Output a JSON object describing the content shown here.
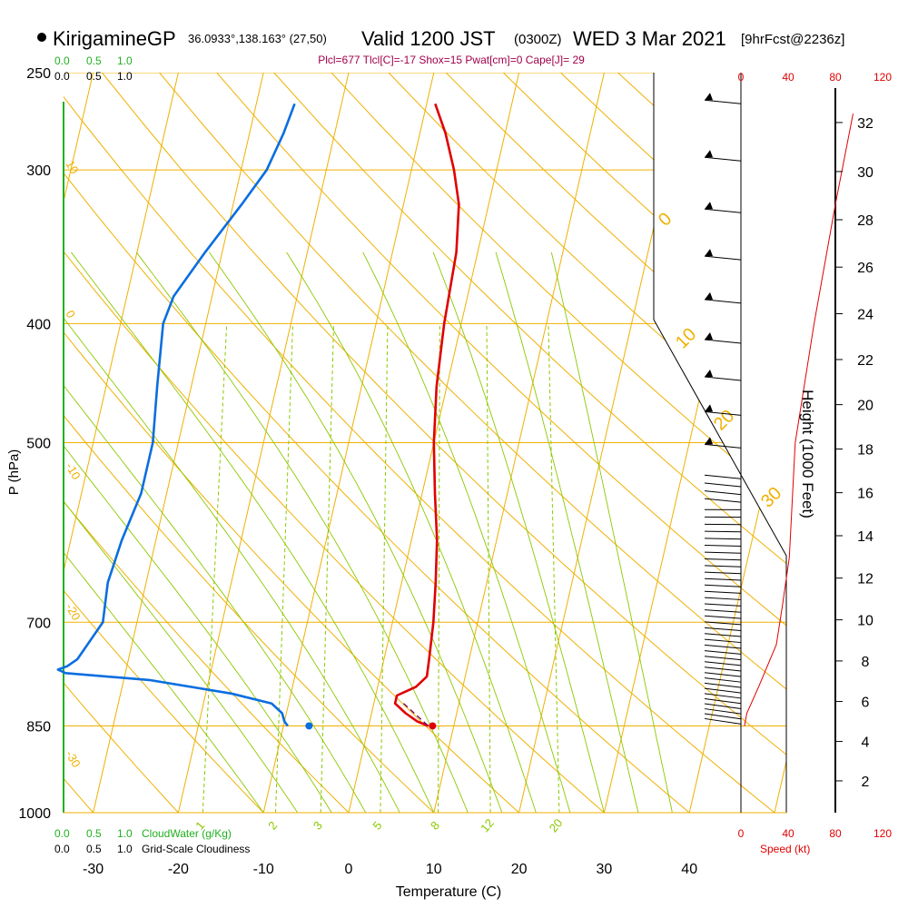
{
  "header": {
    "station": "KirigamineGP",
    "coords": "36.0933°,138.163° (27,50)",
    "valid": "Valid 1200 JST",
    "zulu": "(0300Z)",
    "date": "WED 3 Mar 2021",
    "forecast": "[9hrFcst@2236z]",
    "indices": "Plcl=677 Tlcl[C]=-17 Shox=15 Pwat[cm]=0 Cape[J]= 29"
  },
  "colors": {
    "temperature": "#e00000",
    "dewpoint": "#0a6ee0",
    "isotherm": "#f0b000",
    "dry_adiabat": "#f0b000",
    "moist_adiabat": "#8cc800",
    "mixing_ratio": "#8cc800",
    "cloudwater": "#20b020",
    "speed": "#e00000",
    "indices": "#a0004a",
    "parcel": "#6a006a"
  },
  "top_scales": {
    "cloudwater_ticks": [
      "0.0",
      "0.5",
      "1.0"
    ],
    "cloudiness_ticks": [
      "0.0",
      "0.5",
      "1.0"
    ]
  },
  "bottom_scales": {
    "cloudwater_ticks": [
      "0.0",
      "0.5",
      "1.0"
    ],
    "cloudwater_label": "CloudWater (g/Kg)",
    "cloudiness_ticks": [
      "0.0",
      "0.5",
      "1.0"
    ],
    "cloudiness_label": "Grid-Scale Cloudiness"
  },
  "chart_data": {
    "type": "line",
    "xlabel": "Temperature (C)",
    "ylabel": "P (hPa)",
    "x_ticks": [
      "-30",
      "-20",
      "-10",
      "0",
      "10",
      "20",
      "30",
      "40"
    ],
    "y_ticks": [
      "250",
      "300",
      "400",
      "500",
      "700",
      "850",
      "1000"
    ],
    "pressure_range": [
      1000,
      250
    ],
    "isotherm_labels": [
      "10",
      "0",
      "-10",
      "-20",
      "-30"
    ],
    "theta_labels": [
      "0",
      "10",
      "20",
      "30"
    ],
    "mixing_ratio_labels": [
      "1",
      "2",
      "3",
      "5",
      "8",
      "12",
      "20"
    ],
    "series": [
      {
        "points": [
          [
            7,
            850
          ],
          [
            5.6,
            843
          ],
          [
            4,
            830
          ],
          [
            2.5,
            815
          ],
          [
            2.5,
            803
          ],
          [
            4.5,
            790
          ],
          [
            5.5,
            775
          ],
          [
            5.3,
            750
          ],
          [
            4.8,
            700
          ],
          [
            4.0,
            650
          ],
          [
            3.0,
            600
          ],
          [
            1.5,
            550
          ],
          [
            0.0,
            500
          ],
          [
            -1.2,
            450
          ],
          [
            -2.0,
            400
          ],
          [
            -2.5,
            350
          ],
          [
            -3.5,
            320
          ],
          [
            -5.0,
            300
          ],
          [
            -7.0,
            280
          ],
          [
            -9.0,
            265
          ]
        ]
      },
      {
        "points": [
          [
            -9.5,
            850
          ],
          [
            -10,
            843
          ],
          [
            -10.5,
            830
          ],
          [
            -12,
            815
          ],
          [
            -17,
            800
          ],
          [
            -27,
            780
          ],
          [
            -37,
            770
          ],
          [
            -38,
            765
          ],
          [
            -37,
            760
          ],
          [
            -36,
            750
          ],
          [
            -34,
            700
          ],
          [
            -34.5,
            650
          ],
          [
            -34,
            600
          ],
          [
            -33,
            550
          ],
          [
            -33,
            500
          ],
          [
            -34,
            450
          ],
          [
            -35,
            400
          ],
          [
            -34.5,
            380
          ],
          [
            -32,
            350
          ],
          [
            -29,
            320
          ],
          [
            -27,
            300
          ],
          [
            -26,
            280
          ],
          [
            -25.5,
            265
          ]
        ]
      }
    ],
    "surface": {
      "temperature": 7.5,
      "dewpoint": -7.0,
      "pressure": 850
    },
    "parcel_path": [
      [
        3.5,
        815
      ],
      [
        7,
        850
      ]
    ],
    "height_axis": {
      "label": "Height (1000 Feet)",
      "ticks": [
        "0",
        "2",
        "4",
        "6",
        "8",
        "10",
        "12",
        "14",
        "16",
        "18",
        "20",
        "22",
        "24",
        "26",
        "28",
        "30",
        "32"
      ]
    },
    "speed_axis": {
      "label": "Speed (kt)",
      "ticks": [
        "0",
        "40",
        "80",
        "120"
      ]
    },
    "wind_speed_profile": [
      [
        3,
        850
      ],
      [
        5,
        830
      ],
      [
        15,
        790
      ],
      [
        30,
        730
      ],
      [
        35,
        680
      ],
      [
        41,
        620
      ],
      [
        46,
        500
      ],
      [
        62,
        400
      ],
      [
        80,
        320
      ],
      [
        95,
        270
      ]
    ]
  }
}
